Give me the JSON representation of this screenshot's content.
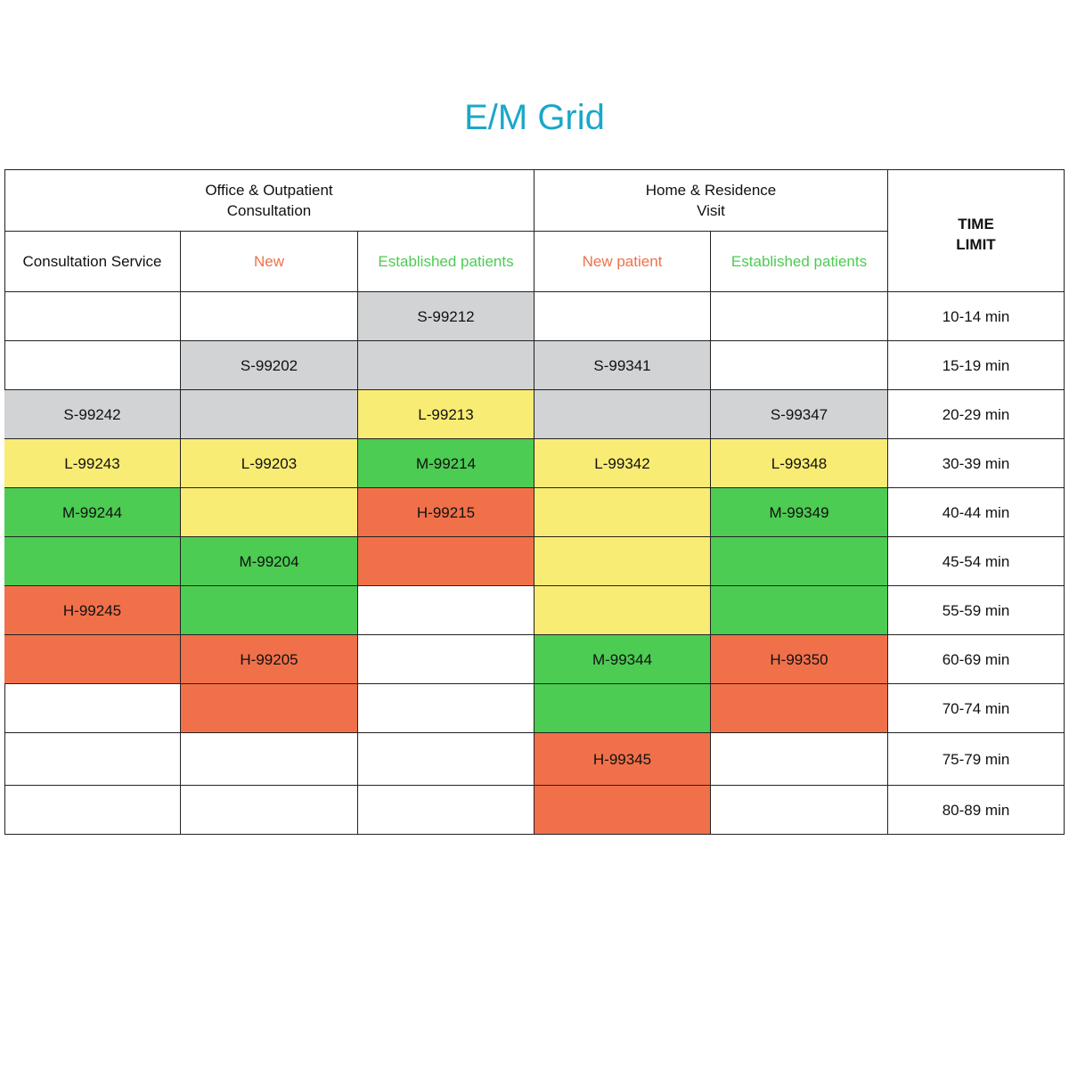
{
  "title": "E/M Grid",
  "table": {
    "groups": [
      {
        "lines": [
          "Office & Outpatient",
          "Consultation"
        ]
      },
      {
        "lines": [
          "Home & Residence",
          "Visit"
        ]
      }
    ],
    "time_header": {
      "lines": [
        "TIME",
        "LIMIT"
      ]
    },
    "columns": [
      {
        "text": "Consultation Service",
        "color": "#111111"
      },
      {
        "text": "New",
        "color": "#f0704a"
      },
      {
        "text": "Established patients",
        "color": "#4ccc52"
      },
      {
        "text": "New patient",
        "color": "#f0704a"
      },
      {
        "text": "Established patients",
        "color": "#4ccc52"
      }
    ],
    "rows": [
      {
        "time": "10-14 min",
        "cells": [
          null,
          null,
          {
            "text": "S-99212",
            "color": "#d1d3d4"
          },
          null,
          null
        ]
      },
      {
        "time": "15-19 min",
        "cells": [
          null,
          {
            "text": "S-99202",
            "color": "#d1d3d4"
          },
          {
            "color": "#d1d3d4"
          },
          {
            "text": "S-99341",
            "color": "#d1d3d4"
          },
          null
        ]
      },
      {
        "time": "20-29 min",
        "cells": [
          {
            "text": "S-99242",
            "color": "#d1d3d4"
          },
          {
            "color": "#d1d3d4"
          },
          {
            "text": "L-99213",
            "color": "#f9ec74"
          },
          {
            "color": "#d1d3d4"
          },
          {
            "text": "S-99347",
            "color": "#d1d3d4"
          }
        ]
      },
      {
        "time": "30-39 min",
        "cells": [
          {
            "text": "L-99243",
            "color": "#f9ec74"
          },
          {
            "text": "L-99203",
            "color": "#f9ec74"
          },
          {
            "text": "M-99214",
            "color": "#4ccc52"
          },
          {
            "text": "L-99342",
            "color": "#f9ec74"
          },
          {
            "text": "L-99348",
            "color": "#f9ec74"
          }
        ]
      },
      {
        "time": "40-44 min",
        "cells": [
          {
            "text": "M-99244",
            "color": "#4ccc52"
          },
          {
            "color": "#f9ec74"
          },
          {
            "text": "H-99215",
            "color": "#f0704a"
          },
          {
            "color": "#f9ec74"
          },
          {
            "text": "M-99349",
            "color": "#4ccc52"
          }
        ]
      },
      {
        "time": "45-54 min",
        "cells": [
          {
            "color": "#4ccc52"
          },
          {
            "text": "M-99204",
            "color": "#4ccc52"
          },
          {
            "color": "#f0704a"
          },
          {
            "color": "#f9ec74"
          },
          {
            "color": "#4ccc52"
          }
        ]
      },
      {
        "time": "55-59 min",
        "cells": [
          {
            "text": "H-99245",
            "color": "#f0704a"
          },
          {
            "color": "#4ccc52"
          },
          null,
          {
            "color": "#f9ec74"
          },
          {
            "color": "#4ccc52"
          }
        ]
      },
      {
        "time": "60-69 min",
        "cells": [
          {
            "color": "#f0704a"
          },
          {
            "text": "H-99205",
            "color": "#f0704a"
          },
          null,
          {
            "text": "M-99344",
            "color": "#4ccc52"
          },
          {
            "text": "H-99350",
            "color": "#f0704a"
          }
        ]
      },
      {
        "time": "70-74 min",
        "cells": [
          null,
          {
            "color": "#f0704a"
          },
          null,
          {
            "color": "#4ccc52"
          },
          {
            "color": "#f0704a"
          }
        ]
      },
      {
        "time": "75-79 min",
        "cells": [
          null,
          null,
          null,
          {
            "text": "H-99345",
            "color": "#f0704a"
          },
          null
        ]
      },
      {
        "time": "80-89 min",
        "cells": [
          null,
          null,
          null,
          {
            "color": "#f0704a"
          },
          null
        ]
      }
    ]
  }
}
